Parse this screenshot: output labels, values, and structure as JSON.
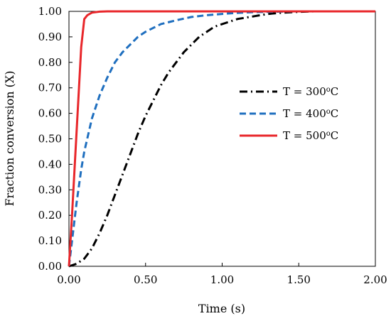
{
  "chart_data": {
    "type": "line",
    "xlabel": "Time (s)",
    "ylabel": "Fraction conversion (X)",
    "xlim": [
      0,
      2.0
    ],
    "ylim": [
      0,
      1.0
    ],
    "x_ticks": [
      "0.00",
      "0.50",
      "1.00",
      "1.50",
      "2.00"
    ],
    "y_ticks": [
      "0.00",
      "0.10",
      "0.20",
      "0.30",
      "0.40",
      "0.50",
      "0.60",
      "0.70",
      "0.80",
      "0.90",
      "1.00"
    ],
    "grid": false,
    "legend_position": "right",
    "series": [
      {
        "name": "T = 300",
        "unit": "oC",
        "color": "#000000",
        "dash": "dashdot",
        "x": [
          0,
          0.05,
          0.1,
          0.15,
          0.2,
          0.25,
          0.3,
          0.35,
          0.4,
          0.45,
          0.5,
          0.55,
          0.6,
          0.65,
          0.7,
          0.75,
          0.8,
          0.85,
          0.9,
          0.95,
          1.0,
          1.05,
          1.1,
          1.15,
          1.2,
          1.3,
          1.4,
          1.5,
          1.6,
          1.7,
          1.8,
          1.9,
          2.0
        ],
        "y": [
          0,
          0.01,
          0.03,
          0.07,
          0.13,
          0.2,
          0.28,
          0.36,
          0.44,
          0.52,
          0.59,
          0.65,
          0.71,
          0.76,
          0.8,
          0.84,
          0.87,
          0.9,
          0.92,
          0.94,
          0.95,
          0.96,
          0.97,
          0.975,
          0.98,
          0.99,
          0.995,
          0.998,
          1.0,
          1.0,
          1.0,
          1.0,
          1.0
        ]
      },
      {
        "name": "T = 400",
        "unit": "oC",
        "color": "#1f6fbf",
        "dash": "dash",
        "x": [
          0,
          0.02,
          0.05,
          0.08,
          0.1,
          0.15,
          0.2,
          0.25,
          0.3,
          0.35,
          0.4,
          0.45,
          0.5,
          0.55,
          0.6,
          0.7,
          0.8,
          0.9,
          1.0,
          1.1,
          1.2,
          1.3,
          1.4,
          1.5,
          2.0
        ],
        "y": [
          0,
          0.1,
          0.25,
          0.38,
          0.45,
          0.58,
          0.67,
          0.74,
          0.8,
          0.84,
          0.87,
          0.9,
          0.92,
          0.935,
          0.95,
          0.965,
          0.978,
          0.985,
          0.99,
          0.994,
          0.997,
          0.998,
          0.999,
          1.0,
          1.0
        ]
      },
      {
        "name": "T = 500",
        "unit": "oC",
        "color": "#e8262a",
        "dash": "solid",
        "x": [
          0,
          0.02,
          0.04,
          0.06,
          0.08,
          0.1,
          0.12,
          0.15,
          0.2,
          0.25,
          0.3,
          0.5,
          1.0,
          1.5,
          2.0
        ],
        "y": [
          0,
          0.2,
          0.42,
          0.64,
          0.86,
          0.97,
          0.985,
          0.995,
          0.999,
          1.0,
          1.0,
          1.0,
          1.0,
          1.0,
          1.0
        ]
      }
    ]
  }
}
